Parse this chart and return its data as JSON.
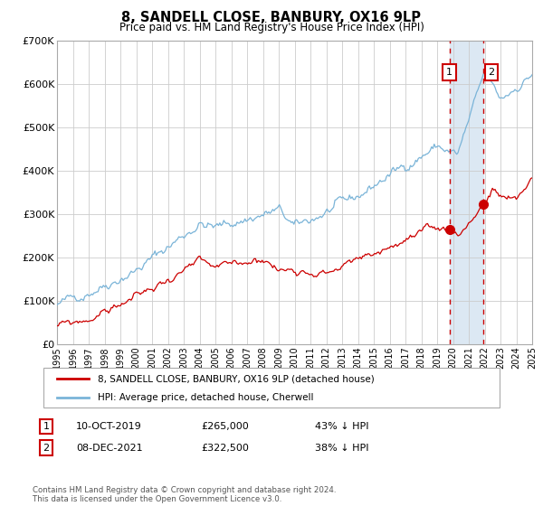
{
  "title": "8, SANDELL CLOSE, BANBURY, OX16 9LP",
  "subtitle": "Price paid vs. HM Land Registry's House Price Index (HPI)",
  "legend_line1": "8, SANDELL CLOSE, BANBURY, OX16 9LP (detached house)",
  "legend_line2": "HPI: Average price, detached house, Cherwell",
  "annotation1_label": "1",
  "annotation1_date": "10-OCT-2019",
  "annotation1_price": "£265,000",
  "annotation1_pct": "43% ↓ HPI",
  "annotation1_year": 2019.78,
  "annotation1_value": 265000,
  "annotation2_label": "2",
  "annotation2_date": "08-DEC-2021",
  "annotation2_price": "£322,500",
  "annotation2_pct": "38% ↓ HPI",
  "annotation2_year": 2021.93,
  "annotation2_value": 322500,
  "xmin": 1995,
  "xmax": 2025,
  "ymin": 0,
  "ymax": 700000,
  "yticks": [
    0,
    100000,
    200000,
    300000,
    400000,
    500000,
    600000,
    700000
  ],
  "ytick_labels": [
    "£0",
    "£100K",
    "£200K",
    "£300K",
    "£400K",
    "£500K",
    "£600K",
    "£700K"
  ],
  "hpi_color": "#7ab4d8",
  "price_color": "#cc0000",
  "marker_color": "#cc0000",
  "vline_color": "#cc0000",
  "shade_color": "#dce8f3",
  "grid_color": "#cccccc",
  "bg_color": "#ffffff",
  "footnote": "Contains HM Land Registry data © Crown copyright and database right 2024.\nThis data is licensed under the Open Government Licence v3.0."
}
